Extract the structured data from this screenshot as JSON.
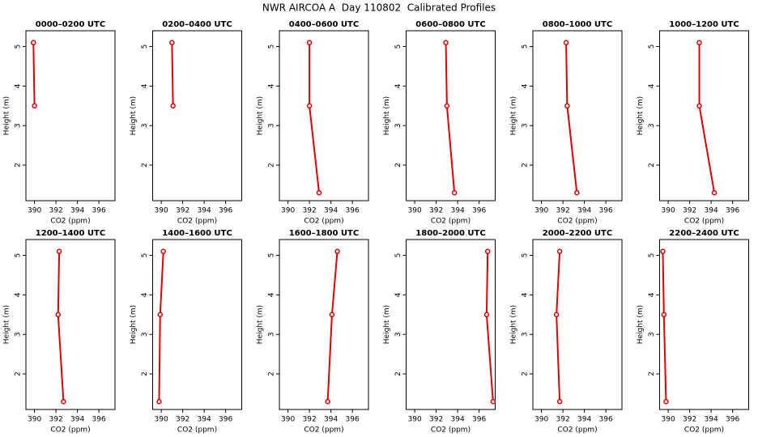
{
  "title": "NWR AIRCOA A  Day 110802  Calibrated Profiles",
  "chart_data": [
    {
      "type": "line",
      "title": "0000–0200 UTC",
      "x_label": "CO2 (ppm)",
      "y_label": "Height (m)",
      "xlim": [
        389.2,
        397.5
      ],
      "ylim": [
        1.1,
        5.4
      ],
      "xticks": [
        390,
        392,
        394,
        396
      ],
      "yticks": [
        2,
        3,
        4,
        5
      ],
      "series": [
        {
          "color": "#e00000",
          "x": [
            389.9,
            390.0,
            null
          ],
          "values": [
            5.1,
            3.5,
            null
          ]
        }
      ]
    },
    {
      "type": "line",
      "title": "0200–0400 UTC",
      "x_label": "CO2 (ppm)",
      "y_label": "Height (m)",
      "xlim": [
        389.2,
        397.5
      ],
      "ylim": [
        1.1,
        5.4
      ],
      "xticks": [
        390,
        392,
        394,
        396
      ],
      "yticks": [
        2,
        3,
        4,
        5
      ],
      "series": [
        {
          "color": "#e00000",
          "x": [
            391.0,
            391.1,
            null
          ],
          "values": [
            5.1,
            3.5,
            null
          ]
        }
      ]
    },
    {
      "type": "line",
      "title": "0400–0600 UTC",
      "x_label": "CO2 (ppm)",
      "y_label": "Height (m)",
      "xlim": [
        389.2,
        397.5
      ],
      "ylim": [
        1.1,
        5.4
      ],
      "xticks": [
        390,
        392,
        394,
        396
      ],
      "yticks": [
        2,
        3,
        4,
        5
      ],
      "series": [
        {
          "color": "#e00000",
          "x": [
            392.0,
            392.0,
            392.9
          ],
          "values": [
            5.1,
            3.5,
            1.3
          ]
        }
      ]
    },
    {
      "type": "line",
      "title": "0600–0800 UTC",
      "x_label": "CO2 (ppm)",
      "y_label": "Height (m)",
      "xlim": [
        389.2,
        397.5
      ],
      "ylim": [
        1.1,
        5.4
      ],
      "xticks": [
        390,
        392,
        394,
        396
      ],
      "yticks": [
        2,
        3,
        4,
        5
      ],
      "series": [
        {
          "color": "#e00000",
          "x": [
            392.9,
            393.0,
            393.7
          ],
          "values": [
            5.1,
            3.5,
            1.3
          ]
        }
      ]
    },
    {
      "type": "line",
      "title": "0800–1000 UTC",
      "x_label": "CO2 (ppm)",
      "y_label": "Height (m)",
      "xlim": [
        389.2,
        397.5
      ],
      "ylim": [
        1.1,
        5.4
      ],
      "xticks": [
        390,
        392,
        394,
        396
      ],
      "yticks": [
        2,
        3,
        4,
        5
      ],
      "series": [
        {
          "color": "#e00000",
          "x": [
            392.3,
            392.4,
            393.3
          ],
          "values": [
            5.1,
            3.5,
            1.3
          ]
        }
      ]
    },
    {
      "type": "line",
      "title": "1000–1200 UTC",
      "x_label": "CO2 (ppm)",
      "y_label": "Height (m)",
      "xlim": [
        389.2,
        397.5
      ],
      "ylim": [
        1.1,
        5.4
      ],
      "xticks": [
        390,
        392,
        394,
        396
      ],
      "yticks": [
        2,
        3,
        4,
        5
      ],
      "series": [
        {
          "color": "#e00000",
          "x": [
            392.9,
            392.9,
            394.3
          ],
          "values": [
            5.1,
            3.5,
            1.3
          ]
        }
      ]
    },
    {
      "type": "line",
      "title": "1200–1400 UTC",
      "x_label": "CO2 (ppm)",
      "y_label": "Height (m)",
      "xlim": [
        389.2,
        397.5
      ],
      "ylim": [
        1.1,
        5.4
      ],
      "xticks": [
        390,
        392,
        394,
        396
      ],
      "yticks": [
        2,
        3,
        4,
        5
      ],
      "series": [
        {
          "color": "#e00000",
          "x": [
            392.3,
            392.2,
            392.7
          ],
          "values": [
            5.1,
            3.5,
            1.3
          ]
        }
      ]
    },
    {
      "type": "line",
      "title": "1400–1600 UTC",
      "x_label": "CO2 (ppm)",
      "y_label": "Height (m)",
      "xlim": [
        389.2,
        397.5
      ],
      "ylim": [
        1.1,
        5.4
      ],
      "xticks": [
        390,
        392,
        394,
        396
      ],
      "yticks": [
        2,
        3,
        4,
        5
      ],
      "series": [
        {
          "color": "#e00000",
          "x": [
            390.2,
            389.9,
            389.8
          ],
          "values": [
            5.1,
            3.5,
            1.3
          ]
        }
      ]
    },
    {
      "type": "line",
      "title": "1600–1800 UTC",
      "x_label": "CO2 (ppm)",
      "y_label": "Height (m)",
      "xlim": [
        389.2,
        397.5
      ],
      "ylim": [
        1.1,
        5.4
      ],
      "xticks": [
        390,
        392,
        394,
        396
      ],
      "yticks": [
        2,
        3,
        4,
        5
      ],
      "series": [
        {
          "color": "#e00000",
          "x": [
            394.6,
            394.1,
            393.7
          ],
          "values": [
            5.1,
            3.5,
            1.3
          ]
        }
      ]
    },
    {
      "type": "line",
      "title": "1800–2000 UTC",
      "x_label": "CO2 (ppm)",
      "y_label": "Height (m)",
      "xlim": [
        389.2,
        397.5
      ],
      "ylim": [
        1.1,
        5.4
      ],
      "xticks": [
        390,
        392,
        394,
        396
      ],
      "yticks": [
        2,
        3,
        4,
        5
      ],
      "series": [
        {
          "color": "#e00000",
          "x": [
            396.8,
            396.7,
            397.3
          ],
          "values": [
            5.1,
            3.5,
            1.3
          ]
        }
      ]
    },
    {
      "type": "line",
      "title": "2000–2200 UTC",
      "x_label": "CO2 (ppm)",
      "y_label": "Height (m)",
      "xlim": [
        389.2,
        397.5
      ],
      "ylim": [
        1.1,
        5.4
      ],
      "xticks": [
        390,
        392,
        394,
        396
      ],
      "yticks": [
        2,
        3,
        4,
        5
      ],
      "series": [
        {
          "color": "#e00000",
          "x": [
            391.7,
            391.4,
            391.7
          ],
          "values": [
            5.1,
            3.5,
            1.3
          ]
        }
      ]
    },
    {
      "type": "line",
      "title": "2200–2400 UTC",
      "x_label": "CO2 (ppm)",
      "y_label": "Height (m)",
      "xlim": [
        389.2,
        397.5
      ],
      "ylim": [
        1.1,
        5.4
      ],
      "xticks": [
        390,
        392,
        394,
        396
      ],
      "yticks": [
        2,
        3,
        4,
        5
      ],
      "series": [
        {
          "color": "#e00000",
          "x": [
            389.5,
            389.6,
            389.8
          ],
          "values": [
            5.1,
            3.5,
            1.3
          ]
        }
      ]
    }
  ]
}
